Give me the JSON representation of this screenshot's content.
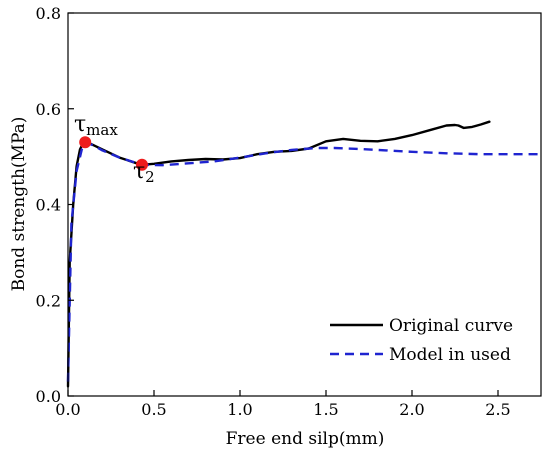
{
  "chart_data": {
    "type": "line",
    "title": "",
    "xlabel": "Free end silp(mm)",
    "ylabel": "Bond strength(MPa)",
    "xlim": [
      0,
      2.75
    ],
    "ylim": [
      0,
      0.8
    ],
    "xticks": [
      0.0,
      0.5,
      1.0,
      1.5,
      2.0,
      2.5
    ],
    "xtick_labels": [
      "0.0",
      "0.5",
      "1.0",
      "1.5",
      "2.0",
      "2.5"
    ],
    "yticks": [
      0.0,
      0.2,
      0.4,
      0.6,
      0.8
    ],
    "ytick_labels": [
      "0.0",
      "0.2",
      "0.4",
      "0.6",
      "0.8"
    ],
    "grid": false,
    "legend": {
      "placement": "bottom-right"
    },
    "series": [
      {
        "name": "Original curve",
        "color": "#000000",
        "style": "solid",
        "x": [
          0.0,
          0.01,
          0.03,
          0.05,
          0.07,
          0.09,
          0.1,
          0.13,
          0.2,
          0.3,
          0.4,
          0.43,
          0.5,
          0.6,
          0.7,
          0.8,
          0.9,
          1.0,
          1.1,
          1.2,
          1.3,
          1.4,
          1.5,
          1.6,
          1.7,
          1.8,
          1.9,
          2.0,
          2.1,
          2.2,
          2.25,
          2.27,
          2.3,
          2.35,
          2.4,
          2.45
        ],
        "y": [
          0.02,
          0.28,
          0.4,
          0.48,
          0.515,
          0.53,
          0.53,
          0.527,
          0.515,
          0.498,
          0.486,
          0.483,
          0.485,
          0.49,
          0.493,
          0.495,
          0.494,
          0.497,
          0.505,
          0.51,
          0.512,
          0.517,
          0.532,
          0.537,
          0.533,
          0.532,
          0.537,
          0.545,
          0.555,
          0.565,
          0.566,
          0.565,
          0.56,
          0.562,
          0.567,
          0.573
        ]
      },
      {
        "name": "Model in used",
        "color": "#1f24d0",
        "style": "dashed",
        "x": [
          0.0,
          0.02,
          0.05,
          0.08,
          0.1,
          0.15,
          0.2,
          0.3,
          0.43,
          0.55,
          0.7,
          0.85,
          1.0,
          1.15,
          1.3,
          1.45,
          1.55,
          1.7,
          1.85,
          2.0,
          2.2,
          2.4,
          2.6,
          2.75
        ],
        "y": [
          0.03,
          0.36,
          0.47,
          0.515,
          0.53,
          0.523,
          0.513,
          0.498,
          0.483,
          0.482,
          0.486,
          0.49,
          0.498,
          0.507,
          0.514,
          0.518,
          0.518,
          0.516,
          0.513,
          0.51,
          0.507,
          0.505,
          0.505,
          0.505
        ]
      }
    ],
    "points": [
      {
        "label": "tau_max",
        "x": 0.1,
        "y": 0.53,
        "color": "#ee1c1c"
      },
      {
        "label": "tau_2",
        "x": 0.43,
        "y": 0.483,
        "color": "#ee1c1c"
      }
    ],
    "annotations": [
      {
        "symbol": "τ",
        "sub": "max"
      },
      {
        "symbol": "τ",
        "sub": "2"
      }
    ]
  }
}
